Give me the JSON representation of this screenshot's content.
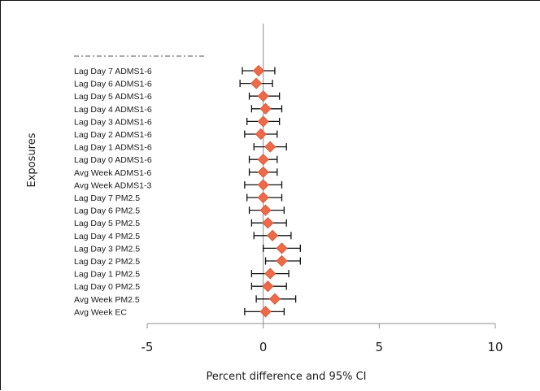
{
  "chart_data": {
    "type": "scatter",
    "title": "",
    "xlabel": "Percent difference and 95% CI",
    "ylabel": "Exposures",
    "xlim": [
      -5,
      10
    ],
    "xticks": [
      "-5",
      "0",
      "5",
      "10"
    ],
    "grid": false,
    "legend": "none",
    "marker": "diamond",
    "marker_color": "#ee6a4a",
    "error_bar_color": "#111111",
    "categories": [
      "Lag Day 7 ADMS1-6",
      "Lag Day 6 ADMS1-6",
      "Lag Day 5 ADMS1-6",
      "Lag Day 4 ADMS1-6",
      "Lag Day 3 ADMS1-6",
      "Lag Day 2 ADMS1-6",
      "Lag Day 1 ADMS1-6",
      "Lag Day 0 ADMS1-6",
      "Avg Week ADMS1-6",
      "Avg Week ADMS1-3",
      "Lag Day 7 PM2.5",
      "Lag Day 6 PM2.5",
      "Lag Day 5 PM2.5",
      "Lag Day 4 PM2.5",
      "Lag Day 3 PM2.5",
      "Lag Day 2 PM2.5",
      "Lag Day 1 PM2.5",
      "Lag Day 0 PM2.5",
      "Avg Week PM2.5",
      "Avg Week EC"
    ],
    "estimates": [
      -0.2,
      -0.3,
      0.0,
      0.1,
      0.0,
      -0.1,
      0.3,
      0.0,
      0.0,
      0.0,
      0.0,
      0.1,
      0.2,
      0.4,
      0.8,
      0.8,
      0.3,
      0.2,
      0.5,
      0.1
    ],
    "ci_lower": [
      -0.9,
      -1.0,
      -0.6,
      -0.5,
      -0.7,
      -0.8,
      -0.4,
      -0.6,
      -0.6,
      -0.8,
      -0.7,
      -0.6,
      -0.5,
      -0.4,
      0.0,
      0.1,
      -0.5,
      -0.5,
      -0.3,
      -0.8
    ],
    "ci_upper": [
      0.5,
      0.4,
      0.7,
      0.8,
      0.7,
      0.6,
      1.0,
      0.6,
      0.6,
      0.8,
      0.8,
      0.9,
      1.0,
      1.2,
      1.6,
      1.6,
      1.1,
      1.0,
      1.4,
      0.9
    ]
  }
}
